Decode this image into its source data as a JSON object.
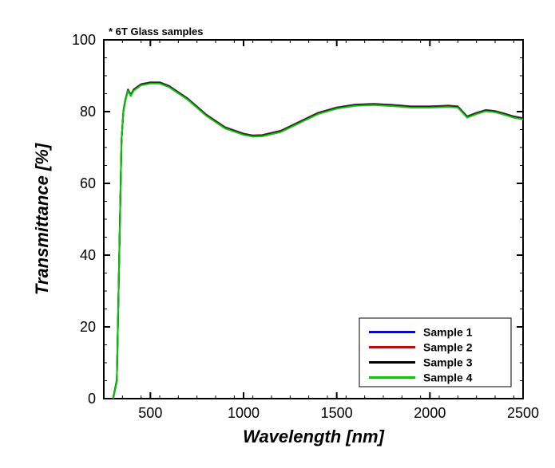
{
  "chart": {
    "type": "line",
    "annotation": "* 6T Glass samples",
    "annotation_fontsize": 13,
    "xlabel": "Wavelength [nm]",
    "ylabel": "Transmittance [%]",
    "label_fontsize": 22,
    "tick_fontsize": 18,
    "background_color": "#ffffff",
    "axis_color": "#000000",
    "axis_linewidth": 2,
    "xlim": [
      250,
      2500
    ],
    "ylim": [
      0,
      100
    ],
    "xticks": [
      500,
      1000,
      1500,
      2000,
      2500
    ],
    "yticks": [
      0,
      20,
      40,
      60,
      80,
      100
    ],
    "minor_ticks_x_step": 100,
    "minor_ticks_y_step": 5,
    "legend": {
      "position": "bottom-right",
      "fontsize": 14,
      "box_color": "#000000",
      "items": [
        {
          "label": "Sample 1",
          "color": "#0000ff"
        },
        {
          "label": "Sample 2",
          "color": "#d60000"
        },
        {
          "label": "Sample 3",
          "color": "#000000"
        },
        {
          "label": "Sample 4",
          "color": "#00cc00"
        }
      ]
    },
    "series_line_width": 2,
    "curve_points": [
      {
        "x": 300,
        "y": 0
      },
      {
        "x": 320,
        "y": 5
      },
      {
        "x": 335,
        "y": 45
      },
      {
        "x": 345,
        "y": 72
      },
      {
        "x": 355,
        "y": 80
      },
      {
        "x": 365,
        "y": 83
      },
      {
        "x": 380,
        "y": 86
      },
      {
        "x": 395,
        "y": 84.5
      },
      {
        "x": 410,
        "y": 86
      },
      {
        "x": 450,
        "y": 87.5
      },
      {
        "x": 500,
        "y": 88
      },
      {
        "x": 550,
        "y": 88
      },
      {
        "x": 600,
        "y": 87
      },
      {
        "x": 700,
        "y": 83.5
      },
      {
        "x": 800,
        "y": 79
      },
      {
        "x": 900,
        "y": 75.5
      },
      {
        "x": 1000,
        "y": 73.7
      },
      {
        "x": 1050,
        "y": 73.2
      },
      {
        "x": 1100,
        "y": 73.3
      },
      {
        "x": 1200,
        "y": 74.5
      },
      {
        "x": 1300,
        "y": 77
      },
      {
        "x": 1400,
        "y": 79.5
      },
      {
        "x": 1500,
        "y": 81
      },
      {
        "x": 1600,
        "y": 81.8
      },
      {
        "x": 1700,
        "y": 82
      },
      {
        "x": 1800,
        "y": 81.7
      },
      {
        "x": 1900,
        "y": 81.3
      },
      {
        "x": 2000,
        "y": 81.3
      },
      {
        "x": 2100,
        "y": 81.5
      },
      {
        "x": 2150,
        "y": 81.3
      },
      {
        "x": 2200,
        "y": 78.5
      },
      {
        "x": 2250,
        "y": 79.5
      },
      {
        "x": 2300,
        "y": 80.3
      },
      {
        "x": 2350,
        "y": 80
      },
      {
        "x": 2400,
        "y": 79.3
      },
      {
        "x": 2450,
        "y": 78.5
      },
      {
        "x": 2500,
        "y": 78
      }
    ]
  }
}
